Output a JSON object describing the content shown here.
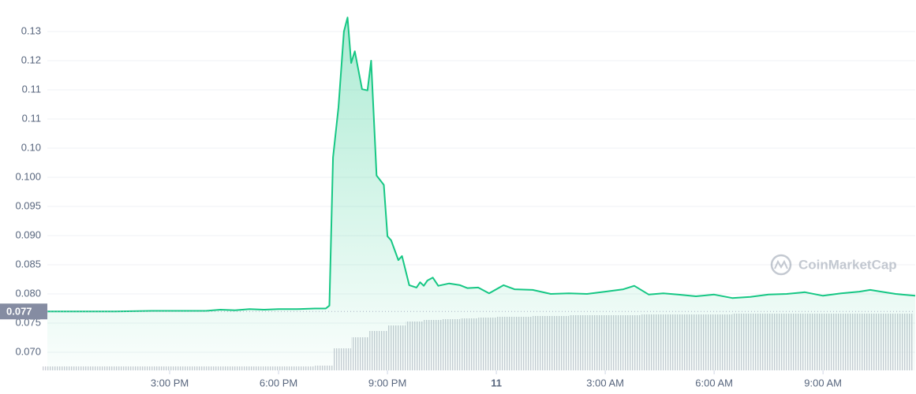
{
  "chart_data": {
    "type": "line",
    "watermark": "CoinMarketCap",
    "last_price": 0.077,
    "color": "#16c784",
    "x": [
      11.63,
      12.5,
      13.5,
      14.5,
      15.5,
      16.0,
      16.4,
      16.8,
      17.2,
      17.6,
      18.0,
      18.5,
      19.0,
      19.3,
      19.4,
      19.5,
      19.65,
      19.8,
      19.9,
      20.0,
      20.1,
      20.3,
      20.45,
      20.55,
      20.7,
      20.9,
      21.0,
      21.1,
      21.3,
      21.4,
      21.6,
      21.8,
      21.9,
      22.0,
      22.1,
      22.25,
      22.4,
      22.7,
      23.0,
      23.2,
      23.5,
      23.8,
      24.2,
      24.5,
      25.0,
      25.5,
      26.0,
      26.5,
      27.0,
      27.5,
      27.8,
      28.2,
      28.6,
      29.0,
      29.5,
      30.0,
      30.5,
      31.0,
      31.5,
      32.0,
      32.5,
      33.0,
      33.5,
      34.0,
      34.3,
      34.6,
      35.0,
      35.54
    ],
    "values": [
      0.077,
      0.077,
      0.077,
      0.0771,
      0.0771,
      0.0771,
      0.0773,
      0.0772,
      0.0774,
      0.0773,
      0.0774,
      0.0774,
      0.0775,
      0.0775,
      0.078,
      0.1034,
      0.112,
      0.125,
      0.1274,
      0.1196,
      0.1216,
      0.1151,
      0.1149,
      0.12,
      0.1003,
      0.0987,
      0.0899,
      0.0892,
      0.0858,
      0.0865,
      0.0815,
      0.0811,
      0.082,
      0.0814,
      0.0823,
      0.0828,
      0.0814,
      0.0818,
      0.0815,
      0.081,
      0.0811,
      0.0801,
      0.0815,
      0.0808,
      0.0807,
      0.08,
      0.0801,
      0.08,
      0.0804,
      0.0808,
      0.0814,
      0.0799,
      0.0801,
      0.0799,
      0.0796,
      0.0799,
      0.0793,
      0.0795,
      0.0799,
      0.08,
      0.0803,
      0.0797,
      0.0801,
      0.0804,
      0.0807,
      0.0804,
      0.08,
      0.0797
    ],
    "xlim": [
      11.63,
      35.54
    ],
    "xticks": [
      {
        "value": 15,
        "label": "3:00 PM"
      },
      {
        "value": 18,
        "label": "6:00 PM"
      },
      {
        "value": 21,
        "label": "9:00 PM"
      },
      {
        "value": 24,
        "label": "11"
      },
      {
        "value": 27,
        "label": "3:00 AM"
      },
      {
        "value": 30,
        "label": "6:00 AM"
      },
      {
        "value": 33,
        "label": "9:00 AM"
      }
    ],
    "ylim": [
      0.0669,
      0.1304
    ],
    "yticks": [
      {
        "value": 0.07,
        "label": "0.070"
      },
      0.075,
      {
        "value": 0.08,
        "label": "0.080"
      },
      0.085,
      {
        "value": 0.09,
        "label": "0.090"
      },
      0.095,
      {
        "value": 0.1,
        "label": "0.100"
      },
      {
        "value": 0.105,
        "label": "0.10"
      },
      {
        "value": 0.11,
        "label": "0.11"
      },
      {
        "value": 0.115,
        "label": "0.11"
      },
      {
        "value": 0.12,
        "label": "0.12"
      },
      {
        "value": 0.125,
        "label": "0.13"
      }
    ],
    "grid": true,
    "volume": {
      "color": "#c8ccd4",
      "y2lim": [
        0,
        100
      ],
      "x": [
        11.75,
        12.25,
        12.75,
        13.25,
        13.75,
        14.25,
        14.75,
        15.25,
        15.75,
        16.25,
        16.75,
        17.25,
        17.75,
        18.25,
        18.75,
        19.25,
        19.75,
        20.25,
        20.75,
        21.25,
        21.75,
        22.25,
        22.75,
        23.25,
        23.75,
        24.25,
        24.75,
        25.25,
        25.75,
        26.25,
        26.75,
        27.25,
        27.75,
        28.25,
        28.75,
        29.25,
        29.75,
        30.25,
        30.75,
        31.25,
        31.75,
        32.25,
        32.75,
        33.25,
        33.75,
        34.25,
        34.75,
        35.25
      ],
      "values": [
        5,
        5,
        5,
        5,
        5,
        5,
        5,
        5,
        5,
        5,
        5,
        5,
        5,
        5,
        5,
        6,
        28,
        42,
        50,
        57,
        62,
        64,
        65,
        66,
        67,
        68,
        68,
        69,
        69,
        70,
        70,
        70,
        70,
        71,
        71,
        71,
        71,
        71,
        72,
        72,
        72,
        72,
        72,
        72,
        72,
        72,
        72,
        72
      ]
    }
  }
}
